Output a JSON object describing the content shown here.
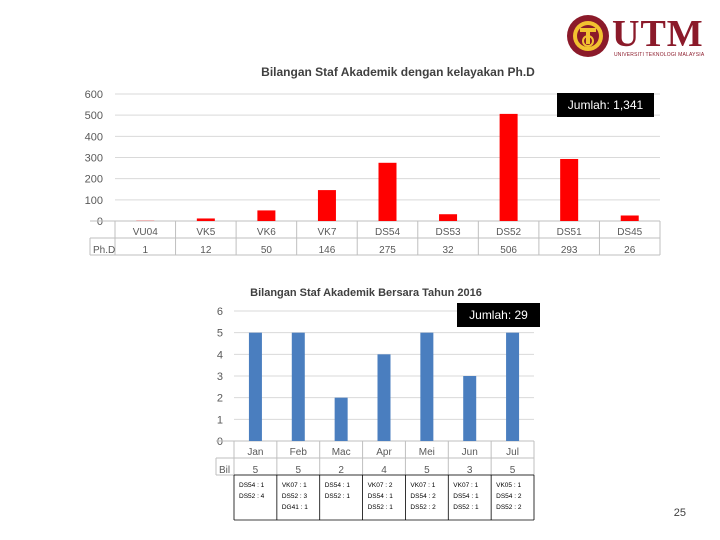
{
  "logo": {
    "text": "UTM",
    "subtitle": "UNIVERSITI TEKNOLOGI MALAYSIA"
  },
  "slide_number": "25",
  "chart_data": [
    {
      "type": "bar",
      "title": "Bilangan Staf Akademik dengan kelayakan Ph.D",
      "categories": [
        "VU04",
        "VK5",
        "VK6",
        "VK7",
        "DS54",
        "DS53",
        "DS52",
        "DS51",
        "DS45"
      ],
      "series": [
        {
          "name": "Ph.D",
          "values": [
            1,
            12,
            50,
            146,
            275,
            32,
            506,
            293,
            26
          ]
        }
      ],
      "ylim": [
        0,
        600
      ],
      "yticks": [
        0,
        100,
        200,
        300,
        400,
        500,
        600
      ],
      "grid": true,
      "data_table": true,
      "annotation": "Jumlah: 1,341",
      "color": "#ff0000"
    },
    {
      "type": "bar",
      "title": "Bilangan Staf Akademik Bersara Tahun 2016",
      "categories": [
        "Jan",
        "Feb",
        "Mac",
        "Apr",
        "Mei",
        "Jun",
        "Jul"
      ],
      "series": [
        {
          "name": "Bil",
          "values": [
            5,
            5,
            2,
            4,
            5,
            3,
            5
          ]
        }
      ],
      "ylim": [
        0,
        6
      ],
      "yticks": [
        0,
        1,
        2,
        3,
        4,
        5,
        6
      ],
      "grid": true,
      "data_table": true,
      "annotation": "Jumlah: 29",
      "color": "#4a7ebf",
      "breakdown": [
        [
          "DS54 : 1",
          "DS52 : 4"
        ],
        [
          "VK07 : 1",
          "DS52 : 3",
          "DG41 : 1"
        ],
        [
          "DS54 : 1",
          "DS52 : 1"
        ],
        [
          "VK07 : 2",
          "DS54 : 1",
          "DS52 : 1"
        ],
        [
          "VK07 : 1",
          "DS54 : 2",
          "DS52 : 2"
        ],
        [
          "VK07 : 1",
          "DS54 : 1",
          "DS52 : 1"
        ],
        [
          "VK05 : 1",
          "DS54 : 2",
          "DS52 : 2"
        ]
      ]
    }
  ]
}
